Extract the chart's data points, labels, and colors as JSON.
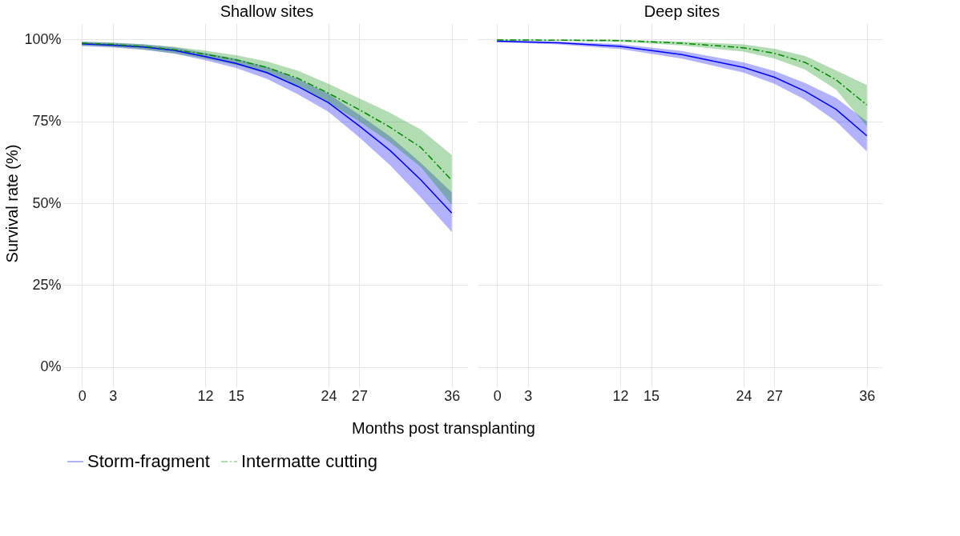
{
  "chart_data": [
    {
      "type": "line",
      "title": "Shallow sites",
      "xlabel": "Months post transplanting",
      "ylabel": "Survival rate (%)",
      "xlim": [
        -1.5,
        37.5
      ],
      "xticks": [
        0,
        3,
        12,
        15,
        24,
        27,
        36
      ],
      "ylim": [
        -5,
        105
      ],
      "yticks": [
        {
          "value": 0,
          "label": "0%"
        },
        {
          "value": 25,
          "label": "25%"
        },
        {
          "value": 50,
          "label": "50%"
        },
        {
          "value": 75,
          "label": "75%"
        },
        {
          "value": 100,
          "label": "100%"
        }
      ],
      "grid": true,
      "legend": "bottom",
      "series": [
        {
          "name": "Storm-fragment",
          "color": "#0000ff",
          "line_style": "solid",
          "x": [
            0,
            3,
            6,
            9,
            12,
            15,
            18,
            21,
            24,
            27,
            30,
            33,
            36
          ],
          "values": [
            98.7,
            98.3,
            97.7,
            96.7,
            94.8,
            92.7,
            89.9,
            85.7,
            80.7,
            73.6,
            66.1,
            57.1,
            47.0
          ],
          "lower": [
            98.0,
            97.6,
            96.9,
            95.7,
            93.7,
            91.3,
            88.0,
            83.3,
            77.9,
            70.1,
            61.6,
            51.7,
            41.2
          ],
          "upper": [
            99.3,
            99.0,
            98.5,
            97.6,
            95.9,
            94.1,
            91.7,
            88.0,
            83.4,
            77.0,
            70.4,
            62.3,
            53.3
          ]
        },
        {
          "name": "Intermatte cutting",
          "color": "#008b00",
          "line_style": "dashed",
          "x": [
            0,
            3,
            6,
            9,
            12,
            15,
            18,
            21,
            24,
            27,
            30,
            33,
            36
          ],
          "values": [
            98.9,
            98.5,
            97.9,
            96.9,
            95.5,
            93.8,
            91.5,
            88.2,
            83.6,
            78.6,
            73.2,
            67.0,
            57.0
          ],
          "lower": [
            98.2,
            97.7,
            97.0,
            95.8,
            94.2,
            92.2,
            89.6,
            85.8,
            80.7,
            75.0,
            68.6,
            61.0,
            49.5
          ],
          "upper": [
            99.4,
            99.1,
            98.6,
            97.8,
            96.6,
            95.2,
            93.3,
            90.5,
            86.5,
            82.0,
            77.6,
            72.5,
            64.7
          ]
        }
      ]
    },
    {
      "type": "line",
      "title": "Deep sites",
      "xlim": [
        -1.5,
        37.5
      ],
      "xticks": [
        0,
        3,
        12,
        15,
        24,
        27,
        36
      ],
      "ylim": [
        -5,
        105
      ],
      "yticks": [
        0,
        25,
        50,
        75,
        100
      ],
      "grid": true,
      "tick_labels": "x",
      "series": [
        {
          "name": "Storm-fragment",
          "color": "#0000ff",
          "line_style": "solid",
          "x": [
            0,
            6,
            12,
            18,
            24,
            27,
            30,
            33,
            36
          ],
          "values": [
            99.5,
            99.0,
            97.9,
            95.4,
            91.5,
            88.5,
            84.2,
            78.7,
            70.6
          ],
          "lower": [
            99.2,
            98.5,
            97.1,
            94.2,
            89.9,
            86.5,
            81.6,
            75.0,
            65.8
          ],
          "upper": [
            99.8,
            99.4,
            98.6,
            96.5,
            93.0,
            90.4,
            86.7,
            82.2,
            75.0
          ]
        },
        {
          "name": "Intermatte cutting",
          "color": "#008b00",
          "line_style": "dashed",
          "x": [
            0,
            6,
            12,
            18,
            24,
            27,
            30,
            33,
            36
          ],
          "values": [
            99.9,
            99.8,
            99.7,
            98.9,
            97.5,
            95.8,
            93.0,
            87.7,
            80.0
          ],
          "lower": [
            99.7,
            99.6,
            99.3,
            98.2,
            96.3,
            94.2,
            90.8,
            84.7,
            73.5
          ],
          "upper": [
            100.0,
            99.9,
            99.9,
            99.4,
            98.5,
            97.2,
            95.0,
            90.6,
            86.1
          ]
        }
      ]
    }
  ]
}
